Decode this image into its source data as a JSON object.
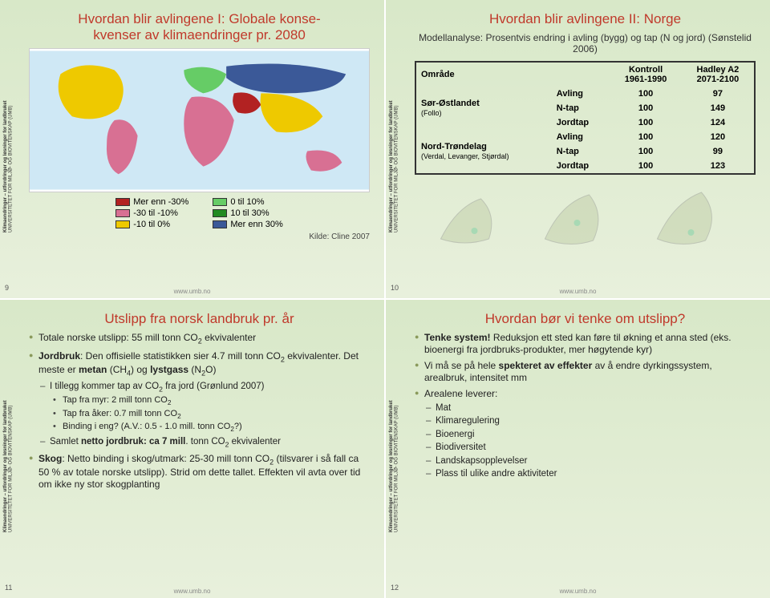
{
  "footer_url": "www.umb.no",
  "sidebar_label": "Klimaendringer – utfordringer og løsninger for landbruket",
  "sidebar_inst": "UNIVERSITETET FOR MILJØ- OG BIOVITENSKAP (UMB)",
  "slide9": {
    "num": "9",
    "title_l1": "Hvordan blir avlingene I: Globale konse-",
    "title_l2": "kvenser av klimaendringer pr. 2080",
    "legend_left": [
      {
        "color": "#b22222",
        "label": "Mer enn -30%"
      },
      {
        "color": "#d87093",
        "label": "-30 til -10%"
      },
      {
        "color": "#eec900",
        "label": "-10 til 0%"
      }
    ],
    "legend_right": [
      {
        "color": "#66cc66",
        "label": "0 til 10%"
      },
      {
        "color": "#228b22",
        "label": "10 til 30%"
      },
      {
        "color": "#3b5998",
        "label": "Mer enn 30%"
      }
    ],
    "source": "Kilde: Cline 2007",
    "map_colors": {
      "ocean": "#cfe8f5",
      "na": "#eec900",
      "sa": "#d87093",
      "af": "#d87093",
      "eu": "#66cc66",
      "ru": "#3b5998",
      "me": "#b22222",
      "as": "#eec900",
      "au": "#d87093"
    }
  },
  "slide10": {
    "num": "10",
    "title": "Hvordan blir avlingene II: Norge",
    "subtitle": "Modellanalyse: Prosentvis endring i avling (bygg) og tap (N og jord) (Sønstelid 2006)",
    "headers": {
      "area": "Område",
      "kontroll_l1": "Kontroll",
      "kontroll_l2": "1961-1990",
      "hadley_l1": "Hadley A2",
      "hadley_l2": "2071-2100"
    },
    "rows": [
      {
        "area_l1": "Sør-Østlandet",
        "area_l2": "(Follo)",
        "metrics": [
          "Avling",
          "N-tap",
          "Jordtap"
        ],
        "kontroll": [
          "100",
          "100",
          "100"
        ],
        "hadley": [
          "97",
          "149",
          "124"
        ]
      },
      {
        "area_l1": "Nord-Trøndelag",
        "area_l2": "(Verdal, Levanger, Stjørdal)",
        "metrics": [
          "Avling",
          "N-tap",
          "Jordtap"
        ],
        "kontroll": [
          "100",
          "100",
          "100"
        ],
        "hadley": [
          "120",
          "99",
          "123"
        ]
      }
    ]
  },
  "slide11": {
    "num": "11",
    "title": "Utslipp fra norsk landbruk pr. år",
    "b1": "Totale norske utslipp: 55 mill tonn CO",
    "b1s": "2",
    "b1e": " ekvivalenter",
    "b2a": "Jordbruk",
    "b2b": ": Den offisielle statistikken sier 4.7 mill tonn CO",
    "b2s": "2",
    "b2c": " ekvivalenter. Det meste er ",
    "b2d": "metan",
    "b2e": " (CH",
    "b2e2": "4",
    "b2f": ") og ",
    "b2g": "lystgass",
    "b2h": " (N",
    "b2h2": "2",
    "b2i": "O)",
    "s1": "I tillegg kommer tap av CO",
    "s1s": "2",
    "s1e": " fra jord (Grønlund 2007)",
    "ss1": "Tap fra myr: 2 mill tonn CO",
    "ss2": "Tap fra åker: 0.7 mill tonn CO",
    "ss3": "Binding i eng? (A.V.: 0.5 - 1.0 mill. tonn CO",
    "ss3e": "?)",
    "s2a": "Samlet ",
    "s2b": "netto jordbruk: ca 7 mill",
    "s2c": ". tonn CO",
    "s2d": " ekvivalenter",
    "b3a": "Skog",
    "b3b": ": Netto binding i skog/utmark: 25-30 mill tonn CO",
    "b3c": " (tilsvarer i så fall ca 50 % av totale norske utslipp). Strid om dette tallet. Effekten vil avta over tid om ikke ny stor skogplanting"
  },
  "slide12": {
    "num": "12",
    "title": "Hvordan bør vi tenke om utslipp?",
    "b1a": "Tenke system!",
    "b1b": " Reduksjon ett sted kan føre til økning et anna sted (eks. bioenergi fra jordbruks-produkter, mer høgytende kyr)",
    "b2a": "Vi må se på hele ",
    "b2b": "spekteret av effekter",
    "b2c": " av å endre dyrkingssystem, arealbruk, intensitet mm",
    "b3": "Arealene leverer:",
    "sub": [
      "Mat",
      "Klimaregulering",
      "Bioenergi",
      "Biodiversitet",
      "Landskapsopplevelser",
      "Plass til ulike andre aktiviteter"
    ]
  }
}
